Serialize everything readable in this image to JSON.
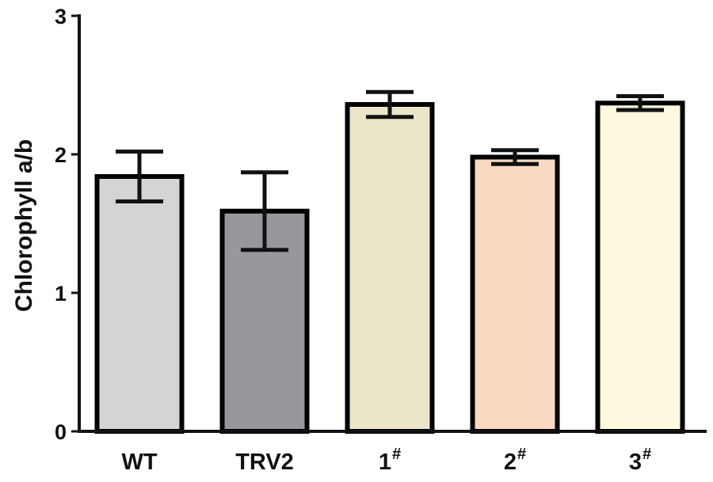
{
  "chart_data": {
    "type": "bar",
    "title": "",
    "xlabel": "",
    "ylabel": "Chlorophyll a/b",
    "ylim": [
      0,
      3
    ],
    "yticks": [
      "0",
      "1",
      "2",
      "3"
    ],
    "categories": [
      {
        "base": "WT",
        "sup": ""
      },
      {
        "base": "TRV2",
        "sup": ""
      },
      {
        "base": "1",
        "sup": "#"
      },
      {
        "base": "2",
        "sup": "#"
      },
      {
        "base": "3",
        "sup": "#"
      }
    ],
    "values": [
      1.84,
      1.59,
      2.36,
      1.98,
      2.37
    ],
    "errors": [
      0.18,
      0.28,
      0.09,
      0.05,
      0.05
    ],
    "colors": [
      "#d4d4d6",
      "#97979d",
      "#ebe5c9",
      "#fad9c2",
      "#fdf8de"
    ]
  }
}
